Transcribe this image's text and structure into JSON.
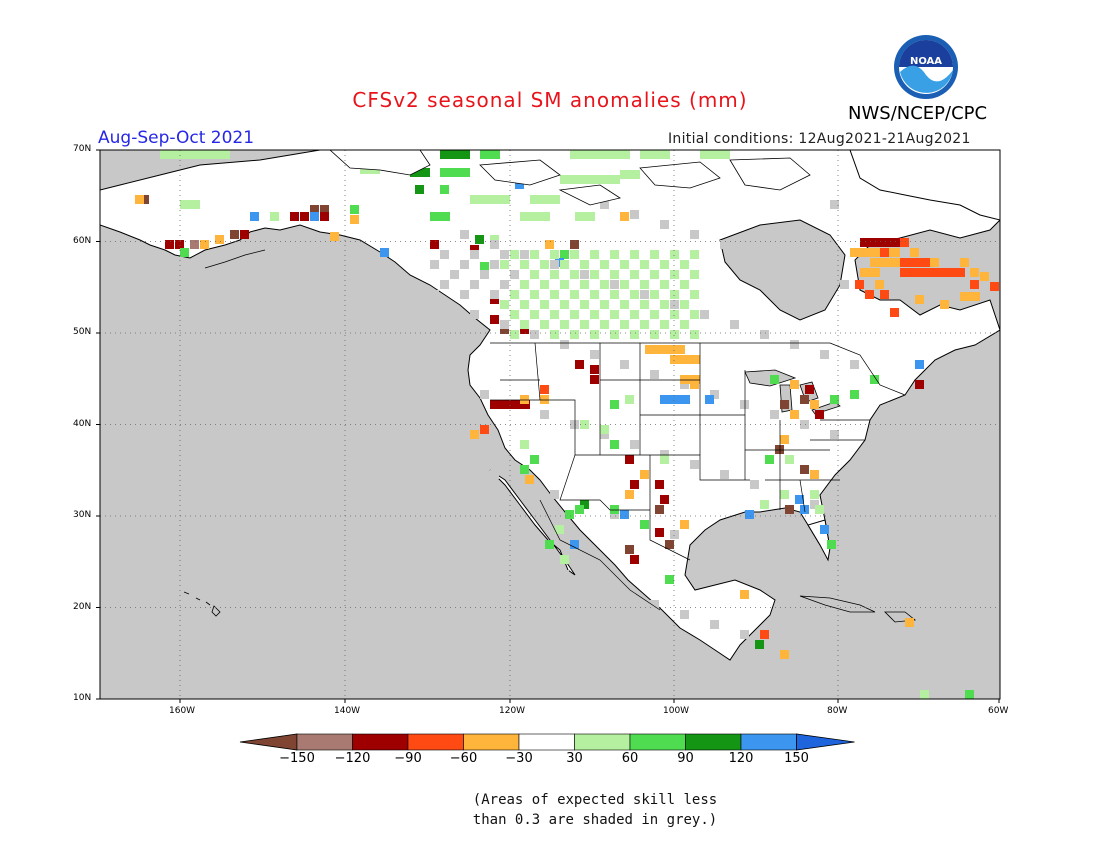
{
  "title": "CFSv2 seasonal SM anomalies (mm)",
  "period": "Aug-Sep-Oct 2021",
  "initial_conditions": "Initial conditions: 12Aug2021-21Aug2021",
  "agency": "NWS/NCEP/CPC",
  "logo": {
    "text": "NOAA",
    "icon": "noaa-logo-icon"
  },
  "lat_labels": [
    "70N",
    "60N",
    "50N",
    "40N",
    "30N",
    "20N",
    "10N"
  ],
  "lon_labels": [
    "160W",
    "140W",
    "120W",
    "100W",
    "80W",
    "60W"
  ],
  "colorbar": {
    "labels": [
      "-150",
      "-120",
      "-90",
      "-60",
      "-30",
      "30",
      "60",
      "90",
      "120",
      "150"
    ],
    "colors": [
      "#7f4532",
      "#a87a72",
      "#9e0000",
      "#ff4a14",
      "#ffb43c",
      "#ffffff",
      "#b4f0a0",
      "#50dc50",
      "#149614",
      "#3c96f0",
      "#1e64dc"
    ]
  },
  "note_line1": "(Areas of expected skill less",
  "note_line2": "than 0.3 are shaded in grey.)",
  "colors": {
    "grey_mask": "#c8c8c8",
    "title": "#e8141b",
    "period": "#2626e6"
  }
}
